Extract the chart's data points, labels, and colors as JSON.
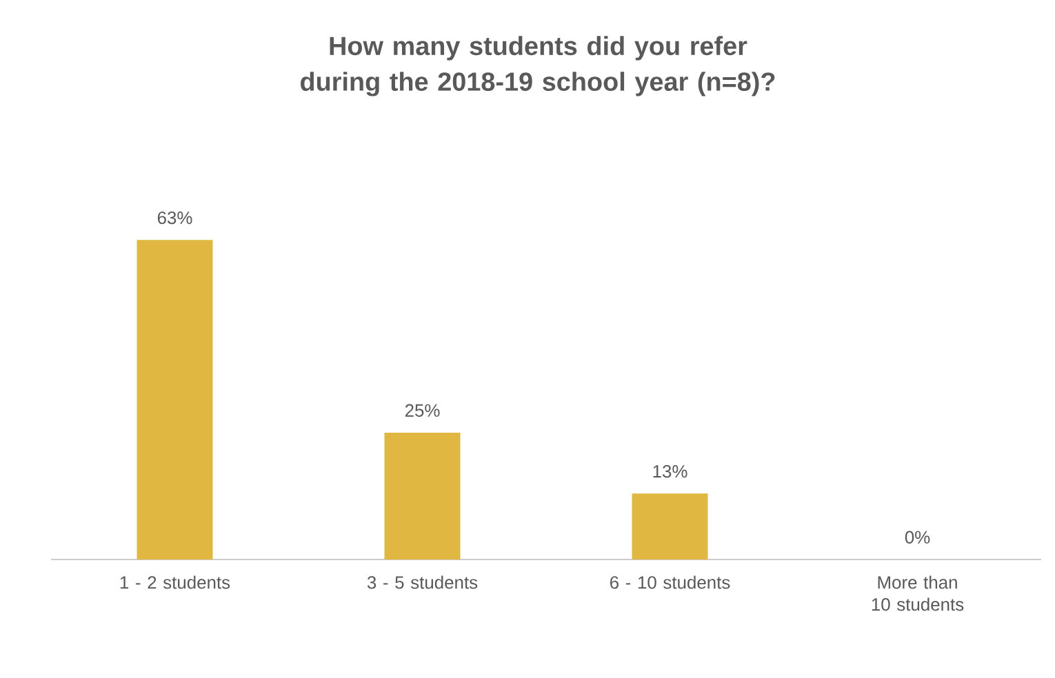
{
  "chart_data": {
    "type": "bar",
    "title": "How many students did you refer during the 2018-19 school year (n=8)?",
    "categories": [
      "1 - 2 students",
      "3 - 5 students",
      "6 - 10 students",
      "More than 10 students"
    ],
    "values": [
      63,
      25,
      13,
      0
    ],
    "value_labels": [
      "63%",
      "25%",
      "13%",
      "0%"
    ],
    "color": "#e0b841"
  }
}
